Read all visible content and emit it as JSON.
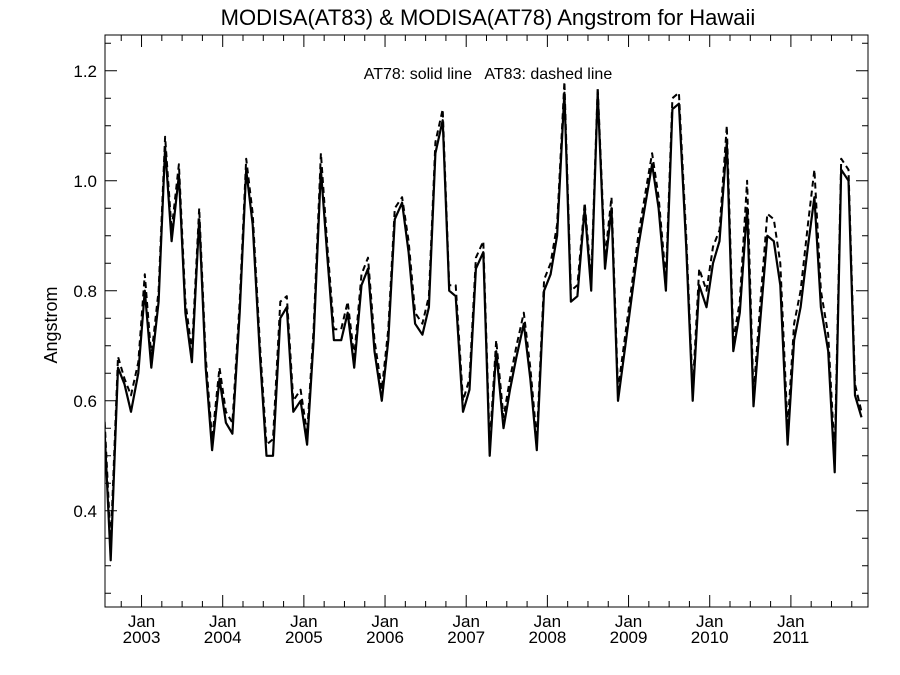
{
  "chart_data": {
    "type": "line",
    "title": "MODISA(AT83) & MODISA(AT78)  Angstrom for Hawaii",
    "ylabel": "Angstrom",
    "xlabel": "",
    "annotation": "AT78: solid line   AT83: dashed line",
    "xlim": [
      2002.55,
      2011.95
    ],
    "ylim": [
      0.225,
      1.265
    ],
    "grid": false,
    "yticks": [
      0.4,
      0.6,
      0.8,
      1.0,
      1.2
    ],
    "ytick_labels": [
      "0.4",
      "0.6",
      "0.8",
      "1.0",
      "1.2"
    ],
    "xticks": [
      {
        "x": 2003,
        "month": "Jan",
        "year": "2003"
      },
      {
        "x": 2004,
        "month": "Jan",
        "year": "2004"
      },
      {
        "x": 2005,
        "month": "Jan",
        "year": "2005"
      },
      {
        "x": 2006,
        "month": "Jan",
        "year": "2006"
      },
      {
        "x": 2007,
        "month": "Jan",
        "year": "2007"
      },
      {
        "x": 2008,
        "month": "Jan",
        "year": "2008"
      },
      {
        "x": 2009,
        "month": "Jan",
        "year": "2009"
      },
      {
        "x": 2010,
        "month": "Jan",
        "year": "2010"
      },
      {
        "x": 2011,
        "month": "Jan",
        "year": "2011"
      }
    ],
    "series": [
      {
        "name": "AT78",
        "style": "solid",
        "color": "#000000",
        "points": [
          [
            2002.54,
            0.56
          ],
          [
            2002.62,
            0.31
          ],
          [
            2002.71,
            0.66
          ],
          [
            2002.79,
            0.63
          ],
          [
            2002.87,
            0.58
          ],
          [
            2002.96,
            0.65
          ],
          [
            2003.04,
            0.8
          ],
          [
            2003.12,
            0.66
          ],
          [
            2003.21,
            0.78
          ],
          [
            2003.29,
            1.06
          ],
          [
            2003.37,
            0.89
          ],
          [
            2003.46,
            1.01
          ],
          [
            2003.54,
            0.76
          ],
          [
            2003.62,
            0.67
          ],
          [
            2003.71,
            0.93
          ],
          [
            2003.79,
            0.66
          ],
          [
            2003.87,
            0.51
          ],
          [
            2003.96,
            0.64
          ],
          [
            2004.04,
            0.56
          ],
          [
            2004.12,
            0.54
          ],
          [
            2004.21,
            0.76
          ],
          [
            2004.29,
            1.02
          ],
          [
            2004.37,
            0.92
          ],
          [
            2004.46,
            0.68
          ],
          [
            2004.54,
            0.5
          ],
          [
            2004.62,
            0.5
          ],
          [
            2004.71,
            0.75
          ],
          [
            2004.79,
            0.77
          ],
          [
            2004.87,
            0.58
          ],
          [
            2004.96,
            0.6
          ],
          [
            2005.04,
            0.52
          ],
          [
            2005.12,
            0.71
          ],
          [
            2005.21,
            1.02
          ],
          [
            2005.29,
            0.86
          ],
          [
            2005.37,
            0.71
          ],
          [
            2005.46,
            0.71
          ],
          [
            2005.54,
            0.76
          ],
          [
            2005.62,
            0.66
          ],
          [
            2005.71,
            0.81
          ],
          [
            2005.79,
            0.84
          ],
          [
            2005.87,
            0.69
          ],
          [
            2005.96,
            0.6
          ],
          [
            2006.04,
            0.71
          ],
          [
            2006.12,
            0.93
          ],
          [
            2006.21,
            0.96
          ],
          [
            2006.29,
            0.87
          ],
          [
            2006.37,
            0.74
          ],
          [
            2006.46,
            0.72
          ],
          [
            2006.54,
            0.77
          ],
          [
            2006.62,
            1.05
          ],
          [
            2006.71,
            1.11
          ],
          [
            2006.79,
            0.8
          ],
          [
            2006.87,
            0.79
          ],
          [
            2006.96,
            0.58
          ],
          [
            2007.04,
            0.62
          ],
          [
            2007.12,
            0.84
          ],
          [
            2007.21,
            0.87
          ],
          [
            2007.29,
            0.5
          ],
          [
            2007.37,
            0.69
          ],
          [
            2007.46,
            0.55
          ],
          [
            2007.54,
            0.62
          ],
          [
            2007.62,
            0.68
          ],
          [
            2007.71,
            0.74
          ],
          [
            2007.79,
            0.64
          ],
          [
            2007.87,
            0.51
          ],
          [
            2007.96,
            0.8
          ],
          [
            2008.04,
            0.83
          ],
          [
            2008.12,
            0.9
          ],
          [
            2008.21,
            1.16
          ],
          [
            2008.29,
            0.78
          ],
          [
            2008.37,
            0.79
          ],
          [
            2008.46,
            0.95
          ],
          [
            2008.54,
            0.8
          ],
          [
            2008.62,
            1.16
          ],
          [
            2008.71,
            0.84
          ],
          [
            2008.79,
            0.95
          ],
          [
            2008.87,
            0.6
          ],
          [
            2008.96,
            0.7
          ],
          [
            2009.04,
            0.79
          ],
          [
            2009.12,
            0.88
          ],
          [
            2009.21,
            0.96
          ],
          [
            2009.29,
            1.03
          ],
          [
            2009.37,
            0.95
          ],
          [
            2009.46,
            0.8
          ],
          [
            2009.54,
            1.13
          ],
          [
            2009.62,
            1.14
          ],
          [
            2009.71,
            0.88
          ],
          [
            2009.79,
            0.6
          ],
          [
            2009.87,
            0.81
          ],
          [
            2009.96,
            0.77
          ],
          [
            2010.04,
            0.85
          ],
          [
            2010.12,
            0.89
          ],
          [
            2010.21,
            1.07
          ],
          [
            2010.29,
            0.69
          ],
          [
            2010.37,
            0.76
          ],
          [
            2010.46,
            0.95
          ],
          [
            2010.54,
            0.59
          ],
          [
            2010.62,
            0.74
          ],
          [
            2010.71,
            0.9
          ],
          [
            2010.79,
            0.89
          ],
          [
            2010.87,
            0.81
          ],
          [
            2010.96,
            0.52
          ],
          [
            2011.04,
            0.71
          ],
          [
            2011.12,
            0.77
          ],
          [
            2011.21,
            0.88
          ],
          [
            2011.29,
            0.97
          ],
          [
            2011.37,
            0.77
          ],
          [
            2011.46,
            0.69
          ],
          [
            2011.54,
            0.47
          ],
          [
            2011.62,
            1.02
          ],
          [
            2011.71,
            1.0
          ],
          [
            2011.79,
            0.61
          ],
          [
            2011.87,
            0.57
          ]
        ]
      },
      {
        "name": "AT83",
        "style": "dashed",
        "color": "#000000",
        "points": [
          [
            2002.54,
            0.58
          ],
          [
            2002.62,
            0.34
          ],
          [
            2002.71,
            0.68
          ],
          [
            2002.79,
            0.64
          ],
          [
            2002.87,
            0.61
          ],
          [
            2002.96,
            0.67
          ],
          [
            2003.04,
            0.83
          ],
          [
            2003.12,
            0.68
          ],
          [
            2003.21,
            0.8
          ],
          [
            2003.29,
            1.08
          ],
          [
            2003.37,
            0.91
          ],
          [
            2003.46,
            1.03
          ],
          [
            2003.54,
            0.78
          ],
          [
            2003.62,
            0.69
          ],
          [
            2003.71,
            0.95
          ],
          [
            2003.79,
            0.68
          ],
          [
            2003.87,
            0.53
          ],
          [
            2003.96,
            0.66
          ],
          [
            2004.04,
            0.58
          ],
          [
            2004.12,
            0.56
          ],
          [
            2004.21,
            0.78
          ],
          [
            2004.29,
            1.04
          ],
          [
            2004.37,
            0.94
          ],
          [
            2004.46,
            0.7
          ],
          [
            2004.54,
            0.52
          ],
          [
            2004.62,
            0.53
          ],
          [
            2004.71,
            0.78
          ],
          [
            2004.79,
            0.79
          ],
          [
            2004.87,
            0.6
          ],
          [
            2004.96,
            0.62
          ],
          [
            2005.04,
            0.54
          ],
          [
            2005.12,
            0.73
          ],
          [
            2005.21,
            1.05
          ],
          [
            2005.29,
            0.88
          ],
          [
            2005.37,
            0.73
          ],
          [
            2005.46,
            0.73
          ],
          [
            2005.54,
            0.78
          ],
          [
            2005.62,
            0.68
          ],
          [
            2005.71,
            0.83
          ],
          [
            2005.79,
            0.86
          ],
          [
            2005.87,
            0.71
          ],
          [
            2005.96,
            0.62
          ],
          [
            2006.04,
            0.73
          ],
          [
            2006.12,
            0.95
          ],
          [
            2006.21,
            0.97
          ],
          [
            2006.29,
            0.89
          ],
          [
            2006.37,
            0.76
          ],
          [
            2006.46,
            0.74
          ],
          [
            2006.54,
            0.79
          ],
          [
            2006.62,
            1.07
          ],
          [
            2006.71,
            1.13
          ],
          [
            2006.79,
            0.81
          ],
          [
            2006.87,
            0.81
          ],
          [
            2006.96,
            0.6
          ],
          [
            2007.04,
            0.64
          ],
          [
            2007.12,
            0.86
          ],
          [
            2007.21,
            0.89
          ],
          [
            2007.29,
            0.52
          ],
          [
            2007.37,
            0.71
          ],
          [
            2007.46,
            0.57
          ],
          [
            2007.54,
            0.64
          ],
          [
            2007.62,
            0.7
          ],
          [
            2007.71,
            0.76
          ],
          [
            2007.79,
            0.66
          ],
          [
            2007.87,
            0.53
          ],
          [
            2007.96,
            0.82
          ],
          [
            2008.04,
            0.85
          ],
          [
            2008.12,
            0.92
          ],
          [
            2008.21,
            1.18
          ],
          [
            2008.29,
            0.8
          ],
          [
            2008.37,
            0.81
          ],
          [
            2008.46,
            0.96
          ],
          [
            2008.54,
            0.82
          ],
          [
            2008.62,
            1.17
          ],
          [
            2008.71,
            0.86
          ],
          [
            2008.79,
            0.97
          ],
          [
            2008.87,
            0.62
          ],
          [
            2008.96,
            0.72
          ],
          [
            2009.04,
            0.81
          ],
          [
            2009.12,
            0.9
          ],
          [
            2009.21,
            0.98
          ],
          [
            2009.29,
            1.05
          ],
          [
            2009.37,
            0.97
          ],
          [
            2009.46,
            0.82
          ],
          [
            2009.54,
            1.15
          ],
          [
            2009.62,
            1.16
          ],
          [
            2009.71,
            0.9
          ],
          [
            2009.79,
            0.62
          ],
          [
            2009.87,
            0.84
          ],
          [
            2009.96,
            0.8
          ],
          [
            2010.04,
            0.88
          ],
          [
            2010.12,
            0.91
          ],
          [
            2010.21,
            1.1
          ],
          [
            2010.29,
            0.71
          ],
          [
            2010.37,
            0.78
          ],
          [
            2010.46,
            1.0
          ],
          [
            2010.54,
            0.61
          ],
          [
            2010.62,
            0.77
          ],
          [
            2010.71,
            0.94
          ],
          [
            2010.79,
            0.93
          ],
          [
            2010.87,
            0.85
          ],
          [
            2010.96,
            0.55
          ],
          [
            2011.04,
            0.74
          ],
          [
            2011.12,
            0.8
          ],
          [
            2011.21,
            0.92
          ],
          [
            2011.29,
            1.02
          ],
          [
            2011.37,
            0.8
          ],
          [
            2011.46,
            0.72
          ],
          [
            2011.54,
            0.5
          ],
          [
            2011.62,
            1.04
          ],
          [
            2011.71,
            1.02
          ],
          [
            2011.79,
            0.63
          ],
          [
            2011.87,
            0.58
          ]
        ]
      }
    ]
  }
}
